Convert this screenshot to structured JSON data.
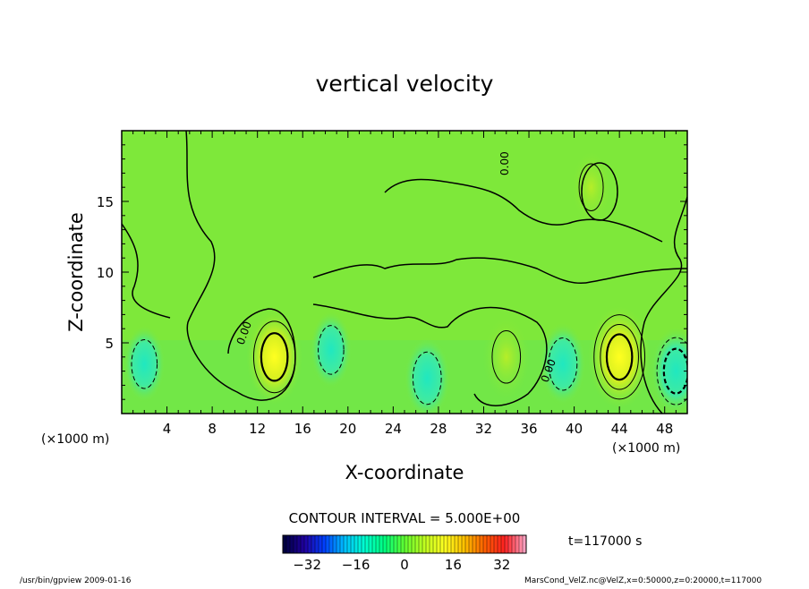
{
  "chart_data": {
    "type": "heatmap",
    "title": "vertical velocity",
    "xlabel": "X-coordinate",
    "ylabel": "Z-coordinate",
    "x_unit_left": "(×1000 m)",
    "x_unit_right": "(×1000 m)",
    "xlim": [
      0,
      50
    ],
    "ylim": [
      0,
      20
    ],
    "x_ticks": [
      4,
      8,
      12,
      16,
      20,
      24,
      28,
      32,
      36,
      40,
      44,
      48
    ],
    "y_ticks": [
      5,
      10,
      15
    ],
    "contour_interval_label": "CONTOUR INTERVAL = 5.000E+00",
    "contour_labels": [
      "0.00",
      "0.00",
      "0.00"
    ],
    "colorbar": {
      "range": [
        -40,
        40
      ],
      "ticks": [
        -32,
        -16,
        0,
        16,
        32
      ],
      "colors": [
        "#000040",
        "#2000a0",
        "#0040ff",
        "#00c0ff",
        "#00ffd0",
        "#00ff80",
        "#60ff30",
        "#c0ff20",
        "#ffff20",
        "#ffc000",
        "#ff6000",
        "#ff2020",
        "#ffa0c0"
      ]
    },
    "time_label": "t=117000 s",
    "features": [
      {
        "x": 13.5,
        "z": 4.0,
        "sign": "positive",
        "peak": 12
      },
      {
        "x": 34,
        "z": 4.0,
        "sign": "positive",
        "peak": 8
      },
      {
        "x": 44,
        "z": 4.0,
        "sign": "positive",
        "peak": 15
      },
      {
        "x": 41.5,
        "z": 16,
        "sign": "positive",
        "peak": 5
      },
      {
        "x": 2,
        "z": 3.5,
        "sign": "negative",
        "peak": -6
      },
      {
        "x": 18.5,
        "z": 4.5,
        "sign": "negative",
        "peak": -6
      },
      {
        "x": 27,
        "z": 2.5,
        "sign": "negative",
        "peak": -8
      },
      {
        "x": 39,
        "z": 3.5,
        "sign": "negative",
        "peak": -8
      },
      {
        "x": 49,
        "z": 3,
        "sign": "negative",
        "peak": -10
      }
    ]
  },
  "footer": {
    "left": "/usr/bin/gpview  2009-01-16",
    "right": "MarsCond_VelZ.nc@VelZ,x=0:50000,z=0:20000,t=117000"
  }
}
